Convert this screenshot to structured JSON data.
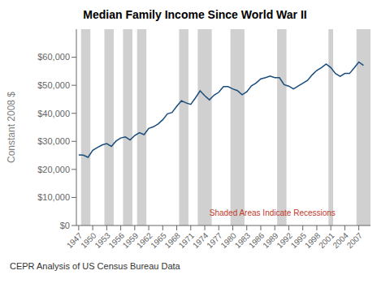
{
  "chart_data": {
    "type": "line",
    "title": "Median Family Income Since World War II",
    "ylabel": "Constant 2008 $",
    "footnote": "CEPR Analysis of US Census Bureau Data",
    "annotations": [
      {
        "text": "Shaded Areas Indicate Recessions",
        "x": 1975,
        "y": 3500,
        "color": "#c0392b"
      }
    ],
    "recessions": {
      "color": "#d0d0d0",
      "spans": [
        [
          1947.5,
          1949.5
        ],
        [
          1952.5,
          1954.5
        ],
        [
          1956.5,
          1958.5
        ],
        [
          1959.5,
          1961.5
        ],
        [
          1968.5,
          1970.5
        ],
        [
          1972.5,
          1975.5
        ],
        [
          1979.5,
          1982.5
        ],
        [
          1989.5,
          1991.5
        ],
        [
          2000.5,
          2001.5
        ],
        [
          2006.5,
          2009.5
        ]
      ]
    },
    "color": "#1a4d7c",
    "grid": false,
    "xlim": [
      1946.5,
      2009.5
    ],
    "xticks": [
      1947,
      1950,
      1953,
      1956,
      1959,
      1962,
      1965,
      1968,
      1971,
      1974,
      1977,
      1980,
      1983,
      1986,
      1989,
      1992,
      1995,
      1998,
      2001,
      2004,
      2007
    ],
    "ylim": [
      0,
      70000
    ],
    "yticks": [
      {
        "value": 0,
        "label": "$0"
      },
      {
        "value": 10000,
        "label": "$10,000"
      },
      {
        "value": 20000,
        "label": "$20,000"
      },
      {
        "value": 30000,
        "label": "$30,000"
      },
      {
        "value": 40000,
        "label": "$40,000"
      },
      {
        "value": 50000,
        "label": "$50,000"
      },
      {
        "value": 60000,
        "label": "$60,000"
      }
    ],
    "x": [
      1947,
      1948,
      1949,
      1950,
      1951,
      1952,
      1953,
      1954,
      1955,
      1956,
      1957,
      1958,
      1959,
      1960,
      1961,
      1962,
      1963,
      1964,
      1965,
      1966,
      1967,
      1968,
      1969,
      1970,
      1971,
      1972,
      1973,
      1974,
      1975,
      1976,
      1977,
      1978,
      1979,
      1980,
      1981,
      1982,
      1983,
      1984,
      1985,
      1986,
      1987,
      1988,
      1989,
      1990,
      1991,
      1992,
      1993,
      1994,
      1995,
      1996,
      1997,
      1998,
      1999,
      2000,
      2001,
      2002,
      2003,
      2004,
      2005,
      2006,
      2007,
      2008
    ],
    "values": [
      25200,
      25100,
      24300,
      26800,
      27800,
      28700,
      29200,
      28200,
      30100,
      31200,
      31600,
      30500,
      32100,
      33100,
      32400,
      34600,
      35200,
      36200,
      37700,
      39800,
      40300,
      42500,
      44500,
      43700,
      43200,
      45500,
      48000,
      46300,
      44800,
      46500,
      47500,
      49500,
      49500,
      48700,
      48100,
      46600,
      47700,
      49800,
      50800,
      52300,
      52700,
      53300,
      52700,
      52700,
      50200,
      49700,
      48700,
      49700,
      50700,
      51700,
      53700,
      55300,
      56300,
      57600,
      56300,
      54200,
      53200,
      54200,
      54200,
      56200,
      58300,
      57100
    ]
  }
}
